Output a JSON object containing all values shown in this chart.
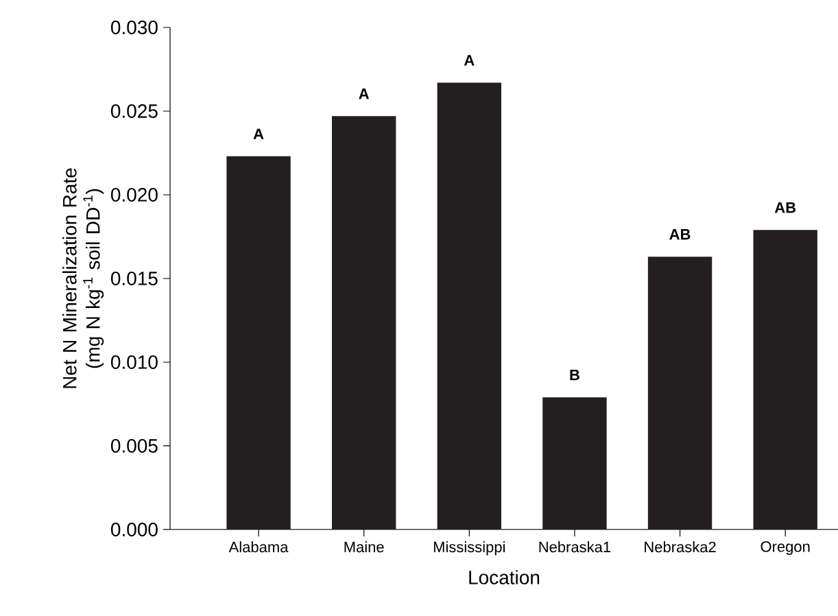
{
  "chart_data": {
    "type": "bar",
    "xlabel": "Location",
    "ylabel": "Net N Mineralization Rate (mg N kg$^{-1}$ soil DD$^{-1}$)",
    "categories": [
      "Alabama",
      "Maine",
      "Mississippi",
      "Nebraska1",
      "Nebraska2",
      "Oregon"
    ],
    "values": [
      0.0223,
      0.0247,
      0.0267,
      0.0079,
      0.0163,
      0.0179
    ],
    "color": "#231f20",
    "ylim": [
      0,
      0.03
    ],
    "yticks": [
      {
        "value": 0,
        "label": "0.000"
      },
      {
        "value": 0.005,
        "label": "0.005"
      },
      {
        "value": 0.01,
        "label": "0.010"
      },
      {
        "value": 0.015,
        "label": "0.015"
      },
      {
        "value": 0.02,
        "label": "0.020"
      },
      {
        "value": 0.025,
        "label": "0.025"
      },
      {
        "value": 0.03,
        "label": "0.030"
      }
    ],
    "grid": false,
    "annotations": [
      {
        "text": "A",
        "x": "Alabama",
        "y": 0.0223
      },
      {
        "text": "A",
        "x": "Maine",
        "y": 0.0247
      },
      {
        "text": "A",
        "x": "Mississippi",
        "y": 0.0267
      },
      {
        "text": "B",
        "x": "Nebraska1",
        "y": 0.0079
      },
      {
        "text": "AB",
        "x": "Nebraska2",
        "y": 0.0163
      },
      {
        "text": "AB",
        "x": "Oregon",
        "y": 0.0179
      }
    ]
  }
}
